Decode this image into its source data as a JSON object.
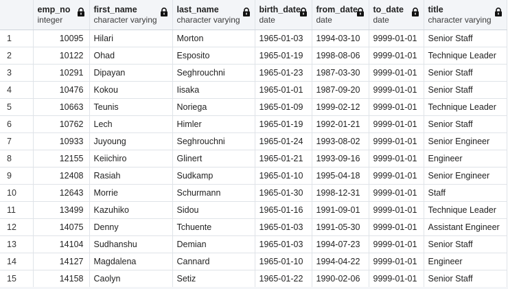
{
  "columns": [
    {
      "name": "emp_no",
      "type": "integer"
    },
    {
      "name": "first_name",
      "type": "character varying"
    },
    {
      "name": "last_name",
      "type": "character varying"
    },
    {
      "name": "birth_date",
      "type": "date"
    },
    {
      "name": "from_date",
      "type": "date"
    },
    {
      "name": "to_date",
      "type": "date"
    },
    {
      "name": "title",
      "type": "character varying"
    }
  ],
  "rows": [
    {
      "idx": "1",
      "emp_no": "10095",
      "first_name": "Hilari",
      "last_name": "Morton",
      "birth_date": "1965-01-03",
      "from_date": "1994-03-10",
      "to_date": "9999-01-01",
      "title": "Senior Staff"
    },
    {
      "idx": "2",
      "emp_no": "10122",
      "first_name": "Ohad",
      "last_name": "Esposito",
      "birth_date": "1965-01-19",
      "from_date": "1998-08-06",
      "to_date": "9999-01-01",
      "title": "Technique Leader"
    },
    {
      "idx": "3",
      "emp_no": "10291",
      "first_name": "Dipayan",
      "last_name": "Seghrouchni",
      "birth_date": "1965-01-23",
      "from_date": "1987-03-30",
      "to_date": "9999-01-01",
      "title": "Senior Staff"
    },
    {
      "idx": "4",
      "emp_no": "10476",
      "first_name": "Kokou",
      "last_name": "Iisaka",
      "birth_date": "1965-01-01",
      "from_date": "1987-09-20",
      "to_date": "9999-01-01",
      "title": "Senior Staff"
    },
    {
      "idx": "5",
      "emp_no": "10663",
      "first_name": "Teunis",
      "last_name": "Noriega",
      "birth_date": "1965-01-09",
      "from_date": "1999-02-12",
      "to_date": "9999-01-01",
      "title": "Technique Leader"
    },
    {
      "idx": "6",
      "emp_no": "10762",
      "first_name": "Lech",
      "last_name": "Himler",
      "birth_date": "1965-01-19",
      "from_date": "1992-01-21",
      "to_date": "9999-01-01",
      "title": "Senior Staff"
    },
    {
      "idx": "7",
      "emp_no": "10933",
      "first_name": "Juyoung",
      "last_name": "Seghrouchni",
      "birth_date": "1965-01-24",
      "from_date": "1993-08-02",
      "to_date": "9999-01-01",
      "title": "Senior Engineer"
    },
    {
      "idx": "8",
      "emp_no": "12155",
      "first_name": "Keiichiro",
      "last_name": "Glinert",
      "birth_date": "1965-01-21",
      "from_date": "1993-09-16",
      "to_date": "9999-01-01",
      "title": "Engineer"
    },
    {
      "idx": "9",
      "emp_no": "12408",
      "first_name": "Rasiah",
      "last_name": "Sudkamp",
      "birth_date": "1965-01-10",
      "from_date": "1995-04-18",
      "to_date": "9999-01-01",
      "title": "Senior Engineer"
    },
    {
      "idx": "10",
      "emp_no": "12643",
      "first_name": "Morrie",
      "last_name": "Schurmann",
      "birth_date": "1965-01-30",
      "from_date": "1998-12-31",
      "to_date": "9999-01-01",
      "title": "Staff"
    },
    {
      "idx": "11",
      "emp_no": "13499",
      "first_name": "Kazuhiko",
      "last_name": "Sidou",
      "birth_date": "1965-01-16",
      "from_date": "1991-09-01",
      "to_date": "9999-01-01",
      "title": "Technique Leader"
    },
    {
      "idx": "12",
      "emp_no": "14075",
      "first_name": "Denny",
      "last_name": "Tchuente",
      "birth_date": "1965-01-03",
      "from_date": "1991-05-30",
      "to_date": "9999-01-01",
      "title": "Assistant Engineer"
    },
    {
      "idx": "13",
      "emp_no": "14104",
      "first_name": "Sudhanshu",
      "last_name": "Demian",
      "birth_date": "1965-01-03",
      "from_date": "1994-07-23",
      "to_date": "9999-01-01",
      "title": "Senior Staff"
    },
    {
      "idx": "14",
      "emp_no": "14127",
      "first_name": "Magdalena",
      "last_name": "Cannard",
      "birth_date": "1965-01-10",
      "from_date": "1994-04-22",
      "to_date": "9999-01-01",
      "title": "Engineer"
    },
    {
      "idx": "15",
      "emp_no": "14158",
      "first_name": "Caolyn",
      "last_name": "Setiz",
      "birth_date": "1965-01-22",
      "from_date": "1990-02-06",
      "to_date": "9999-01-01",
      "title": "Senior Staff"
    }
  ],
  "icons": {
    "column_lock": "lock-icon"
  },
  "colors": {
    "header_bg": "#f3f5f8",
    "grid_line": "#dfe3e8"
  }
}
